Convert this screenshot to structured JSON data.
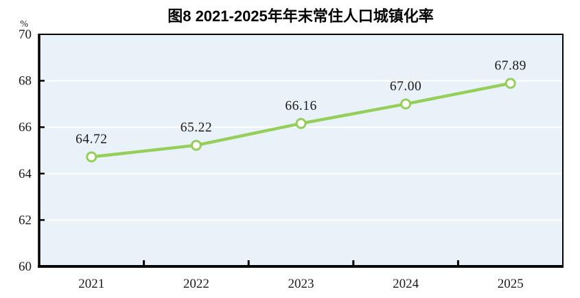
{
  "chart_data": {
    "type": "line",
    "title": "图8  2021-2025年年末常住人口城镇化率",
    "unit_label": "%",
    "categories": [
      "2021",
      "2022",
      "2023",
      "2024",
      "2025"
    ],
    "series": [
      {
        "name": "年末常住人口城镇化率",
        "values": [
          64.72,
          65.22,
          66.16,
          67.0,
          67.89
        ],
        "point_labels": [
          "64.72",
          "65.22",
          "66.16",
          "67.00",
          "67.89"
        ]
      }
    ],
    "xlabel": "",
    "ylabel": "%",
    "ylim": [
      60,
      70
    ],
    "y_ticks": [
      60,
      62,
      64,
      66,
      68,
      70
    ],
    "grid": "horizontal",
    "legend_position": "none",
    "colors": {
      "line": "#96ce5a",
      "marker_fill": "#ffffff",
      "plot_background": "#e9f2f8",
      "gridline": "#ffffff",
      "axis": "#000000",
      "text": "#1a1a1a",
      "page_background": "#ffffff"
    }
  }
}
